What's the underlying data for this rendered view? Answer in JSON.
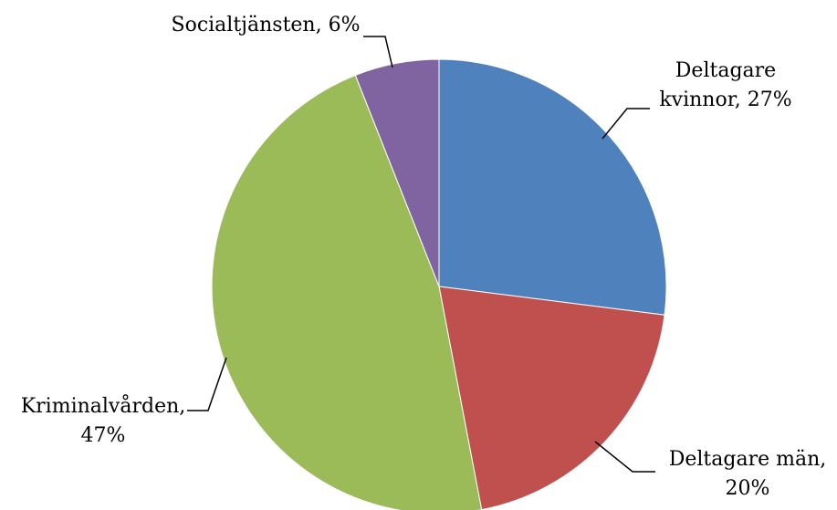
{
  "chart_data": {
    "type": "pie",
    "start_angle_deg": 0,
    "direction": "clockwise",
    "slices": [
      {
        "label": "Deltagare kvinnor",
        "value": 27,
        "color": "#4F81BD",
        "label_lines": [
          "Deltagare",
          "kvinnor, 27%"
        ]
      },
      {
        "label": "Deltagare män",
        "value": 20,
        "color": "#C0504D",
        "label_lines": [
          "Deltagare män,",
          "20%"
        ]
      },
      {
        "label": "Kriminalvården",
        "value": 47,
        "color": "#9BBB59",
        "label_lines": [
          "Kriminalvården,",
          "47%"
        ]
      },
      {
        "label": "Socialtjänsten",
        "value": 6,
        "color": "#8064A2",
        "label_lines": [
          "Socialtjänsten, 6%"
        ]
      }
    ]
  }
}
